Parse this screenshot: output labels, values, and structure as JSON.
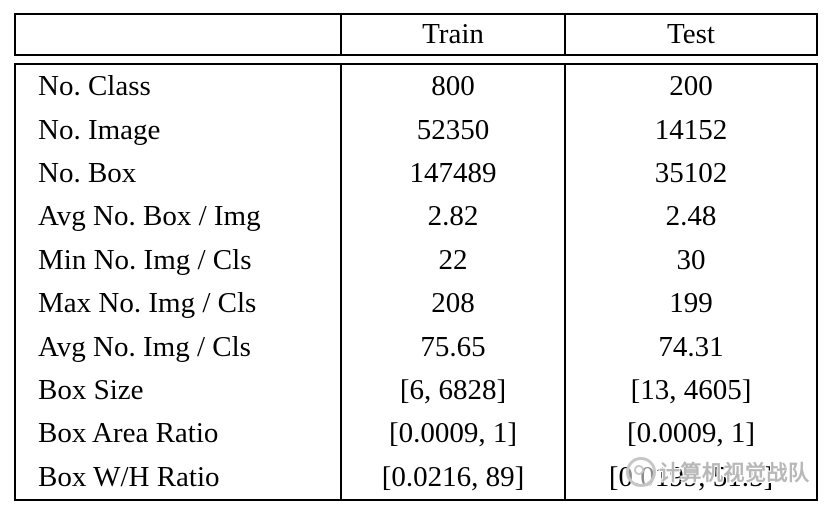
{
  "table": {
    "header": {
      "corner": "",
      "train": "Train",
      "test": "Test"
    },
    "rows": [
      {
        "label": "No. Class",
        "train": "800",
        "test": "200"
      },
      {
        "label": "No. Image",
        "train": "52350",
        "test": "14152"
      },
      {
        "label": "No. Box",
        "train": "147489",
        "test": "35102"
      },
      {
        "label": "Avg No. Box / Img",
        "train": "2.82",
        "test": "2.48"
      },
      {
        "label": "Min No. Img / Cls",
        "train": "22",
        "test": "30"
      },
      {
        "label": "Max No. Img / Cls",
        "train": "208",
        "test": "199"
      },
      {
        "label": "Avg No. Img / Cls",
        "train": "75.65",
        "test": "74.31"
      },
      {
        "label": "Box Size",
        "train": "[6, 6828]",
        "test": "[13, 4605]"
      },
      {
        "label": "Box Area Ratio",
        "train": "[0.0009, 1]",
        "test": "[0.0009, 1]"
      },
      {
        "label": "Box W/H Ratio",
        "train": "[0.0216, 89]",
        "test": "[0.0199, 51.5]"
      }
    ]
  },
  "watermark": {
    "text": "计算机视觉战队"
  },
  "colors": {
    "border": "#000000",
    "text": "#000000",
    "background": "#ffffff",
    "watermark": "#b8b8b8"
  }
}
